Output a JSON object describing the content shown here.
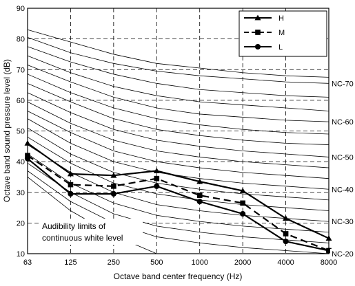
{
  "chart_data": {
    "type": "line",
    "xlabel": "Octave band center frequency (Hz)",
    "ylabel": "Octave band sound pressure level (dB)",
    "x_categories": [
      "63",
      "125",
      "250",
      "500",
      "1000",
      "2000",
      "4000",
      "8000"
    ],
    "ylim": [
      10,
      90
    ],
    "yticks": [
      10,
      20,
      30,
      40,
      50,
      60,
      70,
      80,
      90
    ],
    "grid": "dashed",
    "legend_position": "top-right",
    "series": [
      {
        "name": "H",
        "marker": "triangle",
        "style": "solid",
        "values": [
          46,
          36,
          35.5,
          37,
          33.5,
          30.5,
          21.5,
          15
        ]
      },
      {
        "name": "M",
        "marker": "square",
        "style": "dashed",
        "values": [
          42,
          32.5,
          32,
          34.5,
          29,
          26.5,
          16.5,
          11
        ]
      },
      {
        "name": "L",
        "marker": "circle",
        "style": "solid",
        "values": [
          41,
          29.5,
          29.5,
          32,
          27,
          23,
          14,
          11
        ]
      }
    ],
    "nc_curves": [
      {
        "label": "",
        "values": [
          83,
          79,
          75,
          72,
          70.5,
          69,
          68,
          67.5
        ]
      },
      {
        "label": "NC-70",
        "values": [
          80.5,
          75.5,
          72,
          69.5,
          68,
          67,
          66,
          65.5
        ]
      },
      {
        "label": "",
        "values": [
          77.5,
          72.5,
          68.5,
          65.5,
          63.5,
          62.5,
          61.5,
          61
        ]
      },
      {
        "label": "",
        "values": [
          74.5,
          69,
          64.5,
          61.5,
          59.5,
          58.5,
          57.5,
          56.5
        ]
      },
      {
        "label": "NC-60",
        "values": [
          71.5,
          66,
          61,
          57.5,
          55.5,
          54.5,
          53.5,
          53
        ]
      },
      {
        "label": "",
        "values": [
          68.5,
          62.5,
          57.5,
          54,
          52,
          50.5,
          49.5,
          49
        ]
      },
      {
        "label": "",
        "values": [
          65.5,
          59.5,
          54,
          50.5,
          48.5,
          47,
          46,
          45.5
        ]
      },
      {
        "label": "NC-50",
        "values": [
          62.5,
          56,
          50.5,
          47,
          45,
          43.5,
          42.5,
          41.5
        ]
      },
      {
        "label": "",
        "values": [
          59.5,
          52.5,
          47,
          43.5,
          41.5,
          40,
          39,
          38
        ]
      },
      {
        "label": "",
        "values": [
          56.5,
          49.5,
          43.5,
          40,
          38,
          36.5,
          35.5,
          34.5
        ]
      },
      {
        "label": "NC-40",
        "values": [
          54,
          46,
          40,
          36.5,
          34.5,
          33,
          32,
          31
        ]
      },
      {
        "label": "",
        "values": [
          51,
          42.5,
          36.5,
          33,
          31,
          29.5,
          28.5,
          27.5
        ]
      },
      {
        "label": "",
        "values": [
          48,
          39.5,
          33,
          29.5,
          27.5,
          26,
          25,
          24
        ]
      },
      {
        "label": "NC-30",
        "values": [
          45.5,
          36.5,
          30,
          26,
          24,
          22.5,
          21.5,
          20.5
        ]
      },
      {
        "label": "",
        "values": [
          42.5,
          33,
          26.5,
          22.5,
          20.5,
          19,
          18,
          17
        ]
      },
      {
        "label": "",
        "values": [
          39.5,
          30,
          23,
          19,
          17,
          15.5,
          14.5,
          13.5
        ]
      },
      {
        "label": "NC-20",
        "values": [
          37,
          27,
          20,
          15.5,
          13.5,
          12,
          11,
          10
        ]
      }
    ],
    "white_level_curve": {
      "values": [
        35,
        24,
        16,
        10
      ]
    },
    "annotation": [
      "Audibility limits of",
      "continuous white level"
    ]
  }
}
